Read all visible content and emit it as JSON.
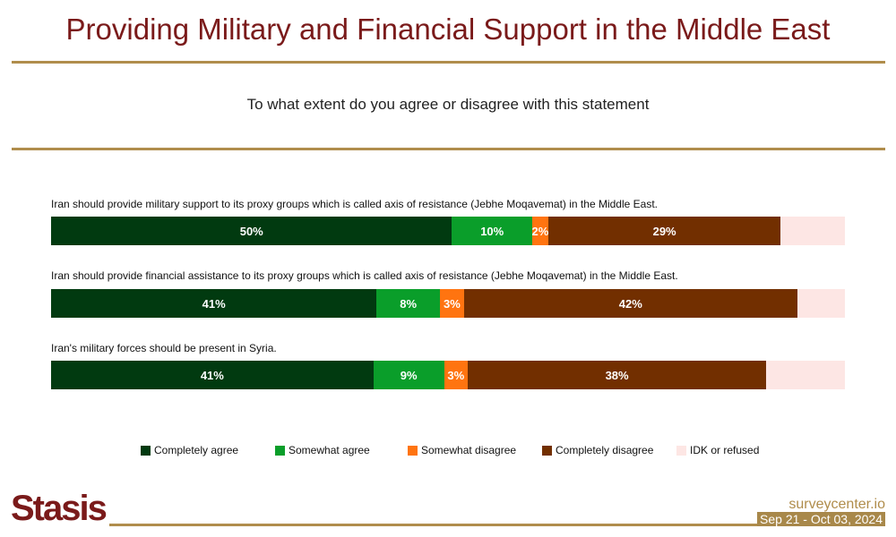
{
  "header": {
    "title": "Providing Military and Financial Support in the Middle East",
    "subtitle": "To what extent do you agree or disagree with this statement"
  },
  "chart_data": {
    "type": "bar",
    "orientation": "horizontal-stacked-100",
    "categories": [
      "Iran should provide military support to its proxy groups which is called axis of resistance (Jebhe Moqavemat) in the Middle East.",
      "Iran should provide financial assistance to its proxy groups which is called axis of resistance (Jebhe Moqavemat) in the Middle East.",
      "Iran's military forces should be present in Syria."
    ],
    "series": [
      {
        "name": "Completely agree",
        "color": "#013a10",
        "values": [
          50,
          41,
          41
        ],
        "labels": [
          "50%",
          "41%",
          "41%"
        ]
      },
      {
        "name": "Somewhat agree",
        "color": "#0a9e2a",
        "values": [
          10,
          8,
          9
        ],
        "labels": [
          "10%",
          "8%",
          "9%"
        ]
      },
      {
        "name": "Somewhat disagree",
        "color": "#ff7410",
        "values": [
          2,
          3,
          3
        ],
        "labels": [
          "2%",
          "3%",
          "3%"
        ]
      },
      {
        "name": "Completely disagree",
        "color": "#722f00",
        "values": [
          29,
          42,
          38
        ],
        "labels": [
          "29%",
          "42%",
          "38%"
        ]
      },
      {
        "name": "IDK or refused",
        "color": "#fde6e4",
        "values": [
          8,
          6,
          10
        ],
        "labels": [
          "",
          "",
          ""
        ]
      }
    ],
    "legend_position": "bottom"
  },
  "footer": {
    "logo": "Stasis",
    "site": "surveycenter.io",
    "date": "Sep 21 - Oct 03, 2024"
  }
}
